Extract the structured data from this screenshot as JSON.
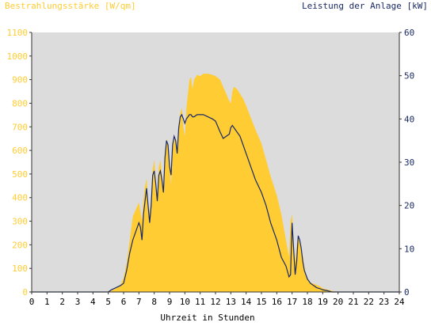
{
  "chart_data": {
    "type": "area",
    "left_axis_title": "Bestrahlungsstärke [W/qm]",
    "right_axis_title": "Leistung der Anlage [kW]",
    "xlabel": "Uhrzeit in Stunden",
    "x_ticks": [
      "0",
      "1",
      "2",
      "3",
      "4",
      "5",
      "6",
      "7",
      "8",
      "9",
      "10",
      "11",
      "12",
      "13",
      "14",
      "15",
      "16",
      "17",
      "18",
      "19",
      "20",
      "21",
      "22",
      "23",
      "24"
    ],
    "y_left_ticks": [
      "0",
      "100",
      "200",
      "300",
      "400",
      "500",
      "600",
      "700",
      "800",
      "900",
      "1000",
      "1100"
    ],
    "y_right_ticks": [
      "0",
      "10",
      "20",
      "30",
      "40",
      "50",
      "60"
    ],
    "xlim": [
      0,
      24
    ],
    "ylim_left": [
      0,
      1100
    ],
    "ylim_right": [
      0,
      60
    ],
    "grid": false,
    "colors": {
      "plot_background": "#dcdcdc",
      "irradiance": "#ffcc33",
      "power": "#1a2a66",
      "left_axis_text": "#ffcc33",
      "right_axis_text": "#1a2a66",
      "axis_text": "#000000"
    },
    "series": [
      {
        "axis": "left",
        "style": "area",
        "x": [
          0,
          5,
          5.2,
          5.5,
          5.8,
          6.0,
          6.2,
          6.4,
          6.6,
          6.8,
          7.0,
          7.1,
          7.2,
          7.3,
          7.4,
          7.5,
          7.6,
          7.7,
          7.8,
          7.9,
          8.0,
          8.1,
          8.2,
          8.3,
          8.4,
          8.5,
          8.6,
          8.7,
          8.8,
          8.9,
          9.0,
          9.1,
          9.2,
          9.3,
          9.4,
          9.5,
          9.6,
          9.7,
          9.8,
          9.9,
          10.0,
          10.1,
          10.2,
          10.3,
          10.4,
          10.5,
          10.6,
          10.8,
          11.0,
          11.2,
          11.5,
          11.8,
          12.0,
          12.3,
          12.5,
          12.7,
          12.9,
          13.0,
          13.1,
          13.2,
          13.4,
          13.6,
          13.8,
          14.0,
          14.3,
          14.6,
          15.0,
          15.3,
          15.6,
          16.0,
          16.3,
          16.6,
          16.8,
          16.9,
          17.0,
          17.1,
          17.2,
          17.3,
          17.4,
          17.5,
          17.6,
          17.7,
          17.8,
          17.9,
          18.0,
          18.2,
          18.4,
          18.6,
          18.8,
          19.0,
          19.3,
          19.6,
          19.9,
          20.1,
          20.3,
          20.5,
          24
        ],
        "values": [
          0,
          0,
          5,
          15,
          30,
          60,
          120,
          220,
          320,
          350,
          380,
          340,
          300,
          390,
          450,
          480,
          380,
          320,
          400,
          520,
          560,
          470,
          410,
          530,
          560,
          500,
          430,
          600,
          650,
          620,
          550,
          450,
          600,
          650,
          640,
          580,
          700,
          760,
          780,
          700,
          660,
          780,
          840,
          900,
          910,
          860,
          900,
          920,
          915,
          925,
          925,
          920,
          915,
          900,
          870,
          840,
          810,
          800,
          850,
          870,
          860,
          840,
          820,
          790,
          740,
          690,
          630,
          560,
          490,
          410,
          330,
          220,
          150,
          300,
          330,
          200,
          120,
          200,
          230,
          210,
          180,
          150,
          110,
          70,
          60,
          40,
          35,
          30,
          25,
          15,
          10,
          5,
          0,
          0,
          0,
          0,
          0
        ]
      },
      {
        "axis": "right",
        "style": "line",
        "x": [
          0,
          5,
          5.2,
          5.5,
          5.8,
          6.0,
          6.2,
          6.4,
          6.6,
          6.8,
          7.0,
          7.1,
          7.2,
          7.3,
          7.4,
          7.5,
          7.6,
          7.7,
          7.8,
          7.9,
          8.0,
          8.1,
          8.2,
          8.3,
          8.4,
          8.5,
          8.6,
          8.7,
          8.8,
          8.9,
          9.0,
          9.1,
          9.2,
          9.3,
          9.4,
          9.5,
          9.6,
          9.7,
          9.8,
          9.9,
          10.0,
          10.1,
          10.2,
          10.3,
          10.4,
          10.5,
          10.6,
          10.8,
          11.0,
          11.2,
          11.5,
          11.8,
          12.0,
          12.3,
          12.5,
          12.7,
          12.9,
          13.0,
          13.1,
          13.2,
          13.4,
          13.6,
          13.8,
          14.0,
          14.3,
          14.6,
          15.0,
          15.3,
          15.6,
          16.0,
          16.3,
          16.6,
          16.8,
          16.9,
          17.0,
          17.1,
          17.2,
          17.3,
          17.4,
          17.5,
          17.6,
          17.7,
          17.8,
          17.9,
          18.0,
          18.2,
          18.4,
          18.6,
          18.8,
          19.0,
          19.3,
          19.6,
          19.9,
          20.1,
          20.3,
          20.5,
          24
        ],
        "values": [
          0,
          0,
          0.5,
          1,
          1.5,
          2,
          5,
          9,
          12,
          14,
          16,
          15,
          12,
          18,
          21,
          24,
          20,
          16,
          20,
          27,
          28,
          25,
          21,
          27,
          28,
          26,
          23,
          31,
          35,
          34,
          29,
          27,
          34,
          36,
          35,
          32,
          38,
          40.5,
          41,
          40,
          39,
          40,
          40.5,
          41,
          41,
          40.5,
          40.5,
          41,
          41,
          41,
          40.5,
          40,
          39.5,
          37,
          35.5,
          36,
          36.5,
          38,
          38.5,
          38,
          37,
          36,
          34,
          32,
          29,
          26,
          23,
          20,
          16,
          12,
          8,
          6,
          3.5,
          4,
          16,
          10,
          4,
          7,
          13,
          12,
          10,
          7,
          5,
          4,
          3,
          2,
          1.5,
          1,
          0.8,
          0.5,
          0.3,
          0,
          0,
          0,
          0,
          0,
          0
        ]
      }
    ]
  }
}
